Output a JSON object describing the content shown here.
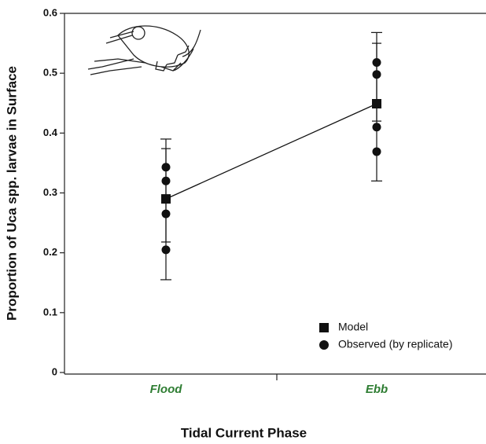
{
  "chart_data": {
    "type": "line",
    "x_label": "Tidal Current Phase",
    "y_label": "Proportion of Uca spp. larvae in Surface",
    "categories": [
      "Flood",
      "Ebb"
    ],
    "category_color": "#2e7d32",
    "ylim": [
      0,
      0.6
    ],
    "yticks": [
      0,
      0.1,
      0.2,
      0.3,
      0.4,
      0.5,
      0.6
    ],
    "series": [
      {
        "name": "Model",
        "marker": "square",
        "color": "#111111",
        "values": [
          0.29,
          0.449
        ],
        "error_low": [
          0.155,
          0.32
        ],
        "error_high": [
          0.39,
          0.568
        ],
        "error_low_inner": [
          0.218,
          0.42
        ],
        "error_high_inner": [
          0.374,
          0.55
        ]
      },
      {
        "name": "Observed (by replicate)",
        "marker": "circle",
        "color": "#111111",
        "values": [
          [
            0.343,
            0.32,
            0.265,
            0.205
          ],
          [
            0.518,
            0.498,
            0.41,
            0.369
          ]
        ]
      }
    ]
  }
}
